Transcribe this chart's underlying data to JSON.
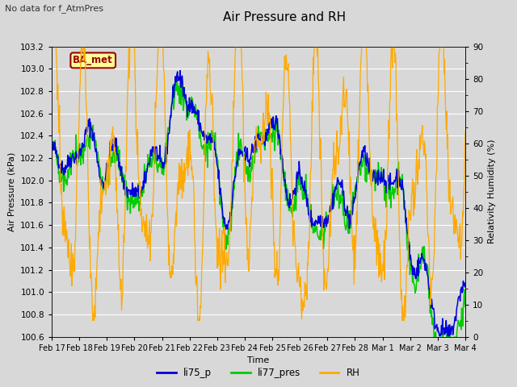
{
  "title": "Air Pressure and RH",
  "top_left_text": "No data for f_AtmPres",
  "ylabel_left": "Air Pressure (kPa)",
  "ylabel_right": "Relativity Humidity (%)",
  "xlabel": "Time",
  "ylim_left": [
    100.6,
    103.2
  ],
  "ylim_right": [
    0,
    90
  ],
  "yticks_left": [
    100.6,
    100.8,
    101.0,
    101.2,
    101.4,
    101.6,
    101.8,
    102.0,
    102.2,
    102.4,
    102.6,
    102.8,
    103.0,
    103.2
  ],
  "yticks_right": [
    0,
    10,
    20,
    30,
    40,
    50,
    60,
    70,
    80,
    90
  ],
  "xtick_labels": [
    "Feb 17",
    "Feb 18",
    "Feb 19",
    "Feb 20",
    "Feb 21",
    "Feb 22",
    "Feb 23",
    "Feb 24",
    "Feb 25",
    "Feb 26",
    "Feb 27",
    "Feb 28",
    "Mar 1",
    "Mar 2",
    "Mar 3",
    "Mar 4"
  ],
  "legend_labels": [
    "li75_p",
    "li77_pres",
    "RH"
  ],
  "legend_colors": [
    "#0000dd",
    "#00cc00",
    "#ffaa00"
  ],
  "line_colors": [
    "#0000dd",
    "#00cc00",
    "#ffaa00"
  ],
  "box_label": "BA_met",
  "box_color": "#ffff99",
  "box_border_color": "#990000",
  "fig_facecolor": "#d8d8d8",
  "plot_facecolor": "#d8d8d8",
  "grid_color": "#ffffff",
  "n_days": 16,
  "n_points": 800,
  "figsize": [
    6.4,
    4.8
  ],
  "dpi": 100
}
